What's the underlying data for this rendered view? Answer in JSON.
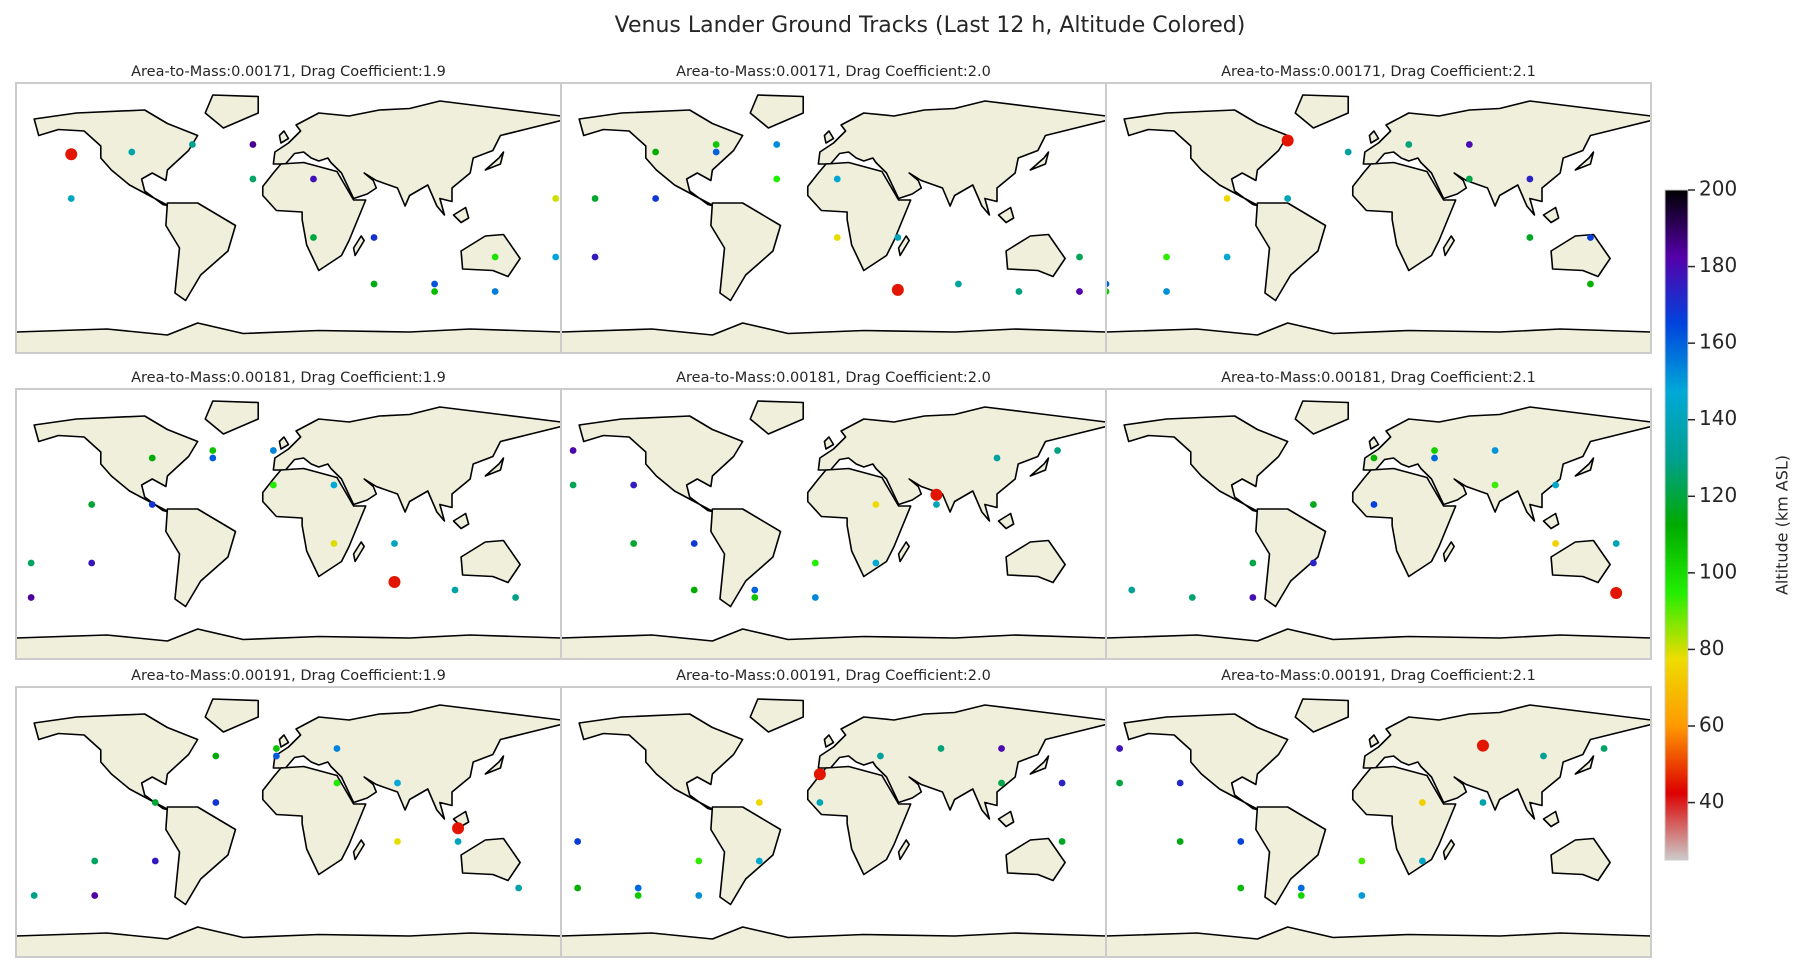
{
  "chart_data": {
    "type": "scatter",
    "title": "Venus Lander Ground Tracks (Last 12 h, Altitude Colored)",
    "xlim": [
      -180,
      180
    ],
    "ylim": [
      -90,
      90
    ],
    "panels": [
      {
        "title": "Area-to-Mass:0.00171, Drag Coefficient:1.9",
        "lon": [
          -23.5,
          16.5,
          56.5,
          96.5,
          136.5,
          176.5,
          -143.5,
          -103.5,
          -63.5,
          -23.5,
          16.5,
          56.5,
          96.5,
          136.5,
          176.5,
          -143.5
        ],
        "lat": [
          49,
          26,
          -13,
          -44,
          -49,
          -26,
          13,
          44,
          49,
          26,
          -13,
          -44,
          -49,
          -26,
          13,
          42.5
        ],
        "alt": [
          185,
          178,
          170,
          162,
          155,
          148,
          142,
          136,
          130,
          125,
          120,
          115,
          108,
          98,
          80,
          45
        ]
      },
      {
        "title": "Area-to-Mass:0.00171, Drag Coefficient:2.0",
        "lon": [
          162.5,
          -157.5,
          -117.5,
          -77.5,
          -37.5,
          2.5,
          42.5,
          82.5,
          122.5,
          162.5,
          -157.5,
          -117.5,
          -77.5,
          -37.5,
          2.5,
          42.5
        ],
        "lat": [
          -49,
          -26,
          13,
          44,
          49,
          26,
          -13,
          -44,
          -49,
          -26,
          13,
          44,
          49,
          26,
          -13,
          -47.9
        ],
        "alt": [
          182,
          176,
          168,
          160,
          152,
          146,
          140,
          134,
          128,
          123,
          118,
          112,
          105,
          95,
          78,
          45
        ]
      },
      {
        "title": "Area-to-Mass:0.00171, Drag Coefficient:2.1",
        "lon": [
          60,
          100,
          140,
          -180,
          -140,
          -100,
          -60,
          -20,
          20,
          60,
          100,
          140,
          -180,
          -140,
          -100,
          -60
        ],
        "lat": [
          49,
          26,
          -13,
          -44,
          -49,
          -26,
          13,
          44,
          49,
          26,
          -13,
          -44,
          -49,
          -26,
          13,
          51.7
        ],
        "alt": [
          180,
          174,
          167,
          160,
          152,
          145,
          139,
          133,
          127,
          122,
          117,
          111,
          104,
          94,
          76,
          45
        ]
      },
      {
        "title": "Area-to-Mass:0.00181, Drag Coefficient:1.9",
        "lon": [
          -170,
          -130,
          -90,
          -50,
          -10,
          30,
          70,
          110,
          150,
          -170,
          -130,
          -90,
          -50,
          -10,
          30,
          70
        ],
        "lat": [
          -49,
          -26,
          13,
          44,
          49,
          26,
          -13,
          -44,
          -49,
          -26,
          13,
          44,
          49,
          26,
          -13,
          -38.7
        ],
        "alt": [
          184,
          177,
          169,
          161,
          154,
          147,
          141,
          135,
          129,
          124,
          119,
          113,
          106,
          96,
          79,
          45
        ]
      },
      {
        "title": "Area-to-Mass:0.00181, Drag Coefficient:2.0",
        "lon": [
          -172,
          -132,
          -92,
          -52,
          -12,
          28,
          68,
          108,
          148,
          -172,
          -132,
          -92,
          -52,
          -12,
          28,
          68
        ],
        "lat": [
          49,
          26,
          -13,
          -44,
          -49,
          -26,
          13,
          44,
          49,
          26,
          -13,
          -44,
          -49,
          -26,
          13,
          19.5
        ],
        "alt": [
          181,
          175,
          168,
          160,
          153,
          146,
          140,
          134,
          128,
          123,
          118,
          112,
          105,
          95,
          77,
          45
        ]
      },
      {
        "title": "Area-to-Mass:0.00181, Drag Coefficient:2.1",
        "lon": [
          -83,
          -43,
          -3,
          37,
          77,
          117,
          157,
          -163,
          -123,
          -83,
          -43,
          -3,
          37,
          77,
          117,
          157
        ],
        "lat": [
          -49,
          -26,
          13,
          44,
          49,
          26,
          -13,
          -44,
          -49,
          -26,
          13,
          44,
          49,
          26,
          -13,
          -46
        ],
        "alt": [
          179,
          173,
          166,
          159,
          151,
          144,
          138,
          132,
          126,
          121,
          116,
          110,
          103,
          93,
          75,
          45
        ]
      },
      {
        "title": "Area-to-Mass:0.00191, Drag Coefficient:1.9",
        "lon": [
          -128,
          -88,
          -48,
          -8,
          32,
          72,
          112,
          152,
          -168,
          -128,
          -88,
          -48,
          -8,
          32,
          72,
          112
        ],
        "lat": [
          -49,
          -26,
          13,
          44,
          49,
          26,
          -13,
          -44,
          -49,
          -26,
          13,
          44,
          49,
          26,
          -13,
          -4.2
        ],
        "alt": [
          183,
          176,
          169,
          161,
          154,
          147,
          141,
          135,
          129,
          124,
          119,
          113,
          106,
          96,
          78,
          45
        ]
      },
      {
        "title": "Area-to-Mass:0.00191, Drag Coefficient:2.0",
        "lon": [
          111,
          151,
          -169,
          -129,
          -89,
          -49,
          -9,
          31,
          71,
          111,
          151,
          -169,
          -129,
          -89,
          -49,
          -9
        ],
        "lat": [
          49,
          26,
          -13,
          -44,
          -49,
          -26,
          13,
          44,
          49,
          26,
          -13,
          -44,
          -49,
          -26,
          13,
          31.8
        ],
        "alt": [
          180,
          174,
          167,
          159,
          152,
          145,
          139,
          133,
          127,
          122,
          117,
          111,
          104,
          94,
          76,
          45
        ]
      },
      {
        "title": "Area-to-Mass:0.00191, Drag Coefficient:2.1",
        "lon": [
          -171,
          -131,
          -91,
          -51,
          -11,
          29,
          69,
          109,
          149,
          -171,
          -131,
          -91,
          -51,
          -11,
          29,
          69
        ],
        "lat": [
          49,
          26,
          -13,
          -44,
          -49,
          -26,
          13,
          44,
          49,
          26,
          -13,
          -44,
          -49,
          -26,
          13,
          50.9
        ],
        "alt": [
          178,
          172,
          165,
          158,
          150,
          143,
          137,
          131,
          125,
          120,
          115,
          109,
          102,
          92,
          74,
          45
        ]
      }
    ],
    "colorbar": {
      "label": "Altitude (km ASL)",
      "lim": [
        25,
        200
      ],
      "ticks": [
        40,
        60,
        80,
        100,
        120,
        140,
        160,
        180,
        200
      ],
      "colors": [
        "#cccccc",
        "#dd0000",
        "#ff9900",
        "#eedd00",
        "#22ee00",
        "#00aa00",
        "#00a090",
        "#00a8d8",
        "#0044dd",
        "#5500aa",
        "#000000"
      ]
    }
  }
}
